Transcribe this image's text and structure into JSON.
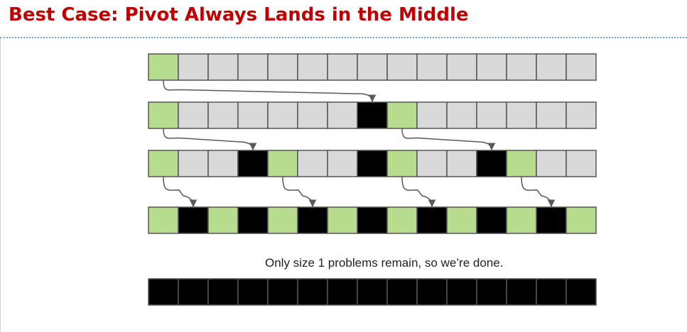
{
  "title": "Best Case: Pivot Always Lands in the Middle",
  "caption": "Only size 1 problems remain, so we’re done.",
  "colors": {
    "title": "#c00000",
    "pivot": "#b6dd8e",
    "unsorted": "#d9d9d9",
    "sorted": "#000000",
    "cell_border": "#555555",
    "arrow": "#595959"
  },
  "rows": [
    [
      "p",
      "u",
      "u",
      "u",
      "u",
      "u",
      "u",
      "u",
      "u",
      "u",
      "u",
      "u",
      "u",
      "u",
      "u"
    ],
    [
      "p",
      "u",
      "u",
      "u",
      "u",
      "u",
      "u",
      "s",
      "p",
      "u",
      "u",
      "u",
      "u",
      "u",
      "u"
    ],
    [
      "p",
      "u",
      "u",
      "s",
      "p",
      "u",
      "u",
      "s",
      "p",
      "u",
      "u",
      "s",
      "p",
      "u",
      "u"
    ],
    [
      "p",
      "s",
      "p",
      "s",
      "p",
      "s",
      "p",
      "s",
      "p",
      "s",
      "p",
      "s",
      "p",
      "s",
      "p"
    ],
    [
      "s",
      "s",
      "s",
      "s",
      "s",
      "s",
      "s",
      "s",
      "s",
      "s",
      "s",
      "s",
      "s",
      "s",
      "s"
    ]
  ],
  "arrows": [
    {
      "from_row": 0,
      "from_cell": 0,
      "to_row": 1,
      "to_cell": 7
    },
    {
      "from_row": 1,
      "from_cell": 0,
      "to_row": 2,
      "to_cell": 3
    },
    {
      "from_row": 1,
      "from_cell": 8,
      "to_row": 2,
      "to_cell": 11
    },
    {
      "from_row": 2,
      "from_cell": 0,
      "to_row": 3,
      "to_cell": 1
    },
    {
      "from_row": 2,
      "from_cell": 4,
      "to_row": 3,
      "to_cell": 5
    },
    {
      "from_row": 2,
      "from_cell": 8,
      "to_row": 3,
      "to_cell": 9
    },
    {
      "from_row": 2,
      "from_cell": 12,
      "to_row": 3,
      "to_cell": 13
    }
  ]
}
